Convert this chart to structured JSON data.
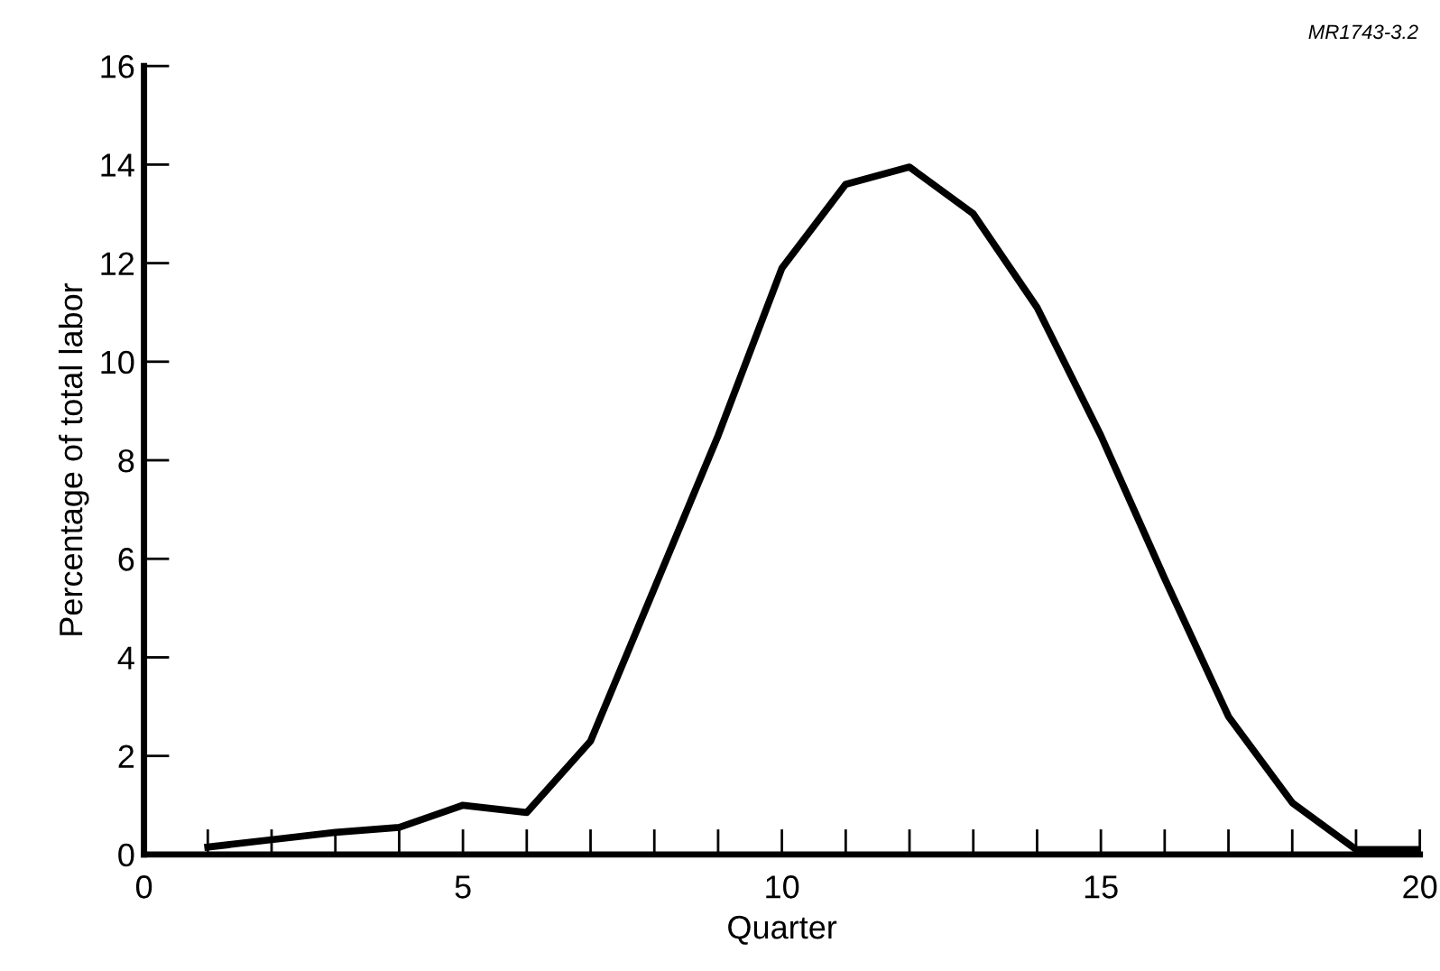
{
  "chart_data": {
    "type": "line",
    "xlabel": "Quarter",
    "ylabel": "Percentage of total labor",
    "annotations": [
      "MR1743-3.2"
    ],
    "x": [
      1,
      2,
      3,
      4,
      5,
      6,
      7,
      8,
      9,
      10,
      11,
      12,
      13,
      14,
      15,
      16,
      17,
      18,
      19,
      20
    ],
    "series": [
      {
        "color": "#000000",
        "values": [
          0.15,
          0.3,
          0.45,
          0.55,
          1.0,
          0.85,
          2.3,
          5.4,
          8.5,
          11.9,
          13.6,
          13.95,
          13.0,
          11.1,
          8.5,
          5.6,
          2.8,
          1.05,
          0.1,
          0.1
        ]
      }
    ],
    "xlim": [
      0,
      20
    ],
    "ylim": [
      0,
      16
    ],
    "xticks": [
      0,
      {
        "value": 1,
        "label": null
      },
      {
        "value": 2,
        "label": null
      },
      {
        "value": 3,
        "label": null
      },
      {
        "value": 4,
        "label": null
      },
      5,
      {
        "value": 6,
        "label": null
      },
      {
        "value": 7,
        "label": null
      },
      {
        "value": 8,
        "label": null
      },
      {
        "value": 9,
        "label": null
      },
      10,
      {
        "value": 11,
        "label": null
      },
      {
        "value": 12,
        "label": null
      },
      {
        "value": 13,
        "label": null
      },
      {
        "value": 14,
        "label": null
      },
      15,
      {
        "value": 16,
        "label": null
      },
      {
        "value": 17,
        "label": null
      },
      {
        "value": 18,
        "label": null
      },
      {
        "value": 19,
        "label": null
      },
      20
    ],
    "yticks": [
      0,
      2,
      4,
      6,
      8,
      10,
      12,
      14,
      16
    ],
    "grid": false,
    "legend": false,
    "marker": "none",
    "line_style": "solid"
  }
}
